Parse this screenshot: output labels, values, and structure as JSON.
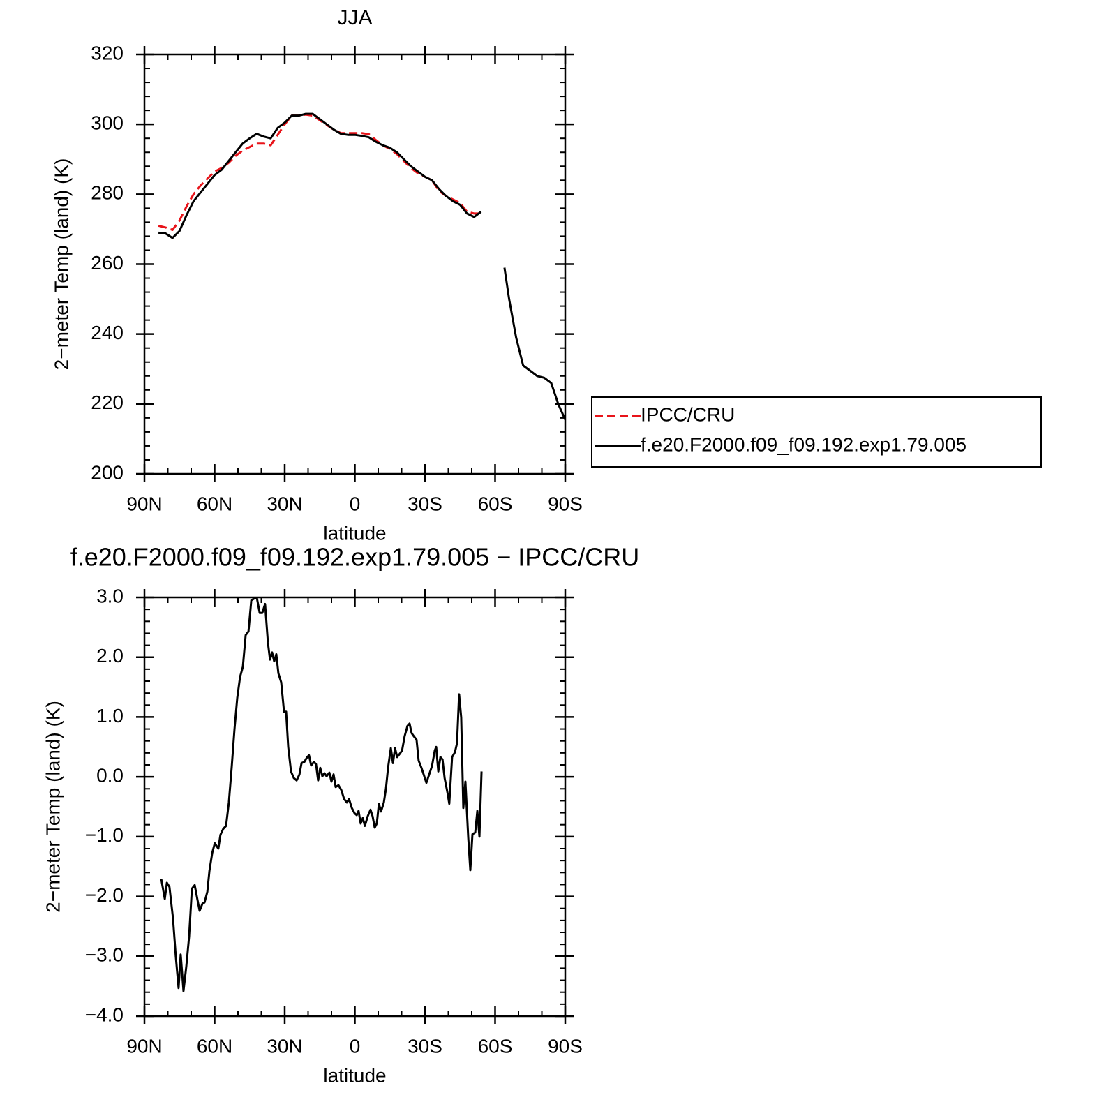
{
  "chart_data": [
    {
      "type": "line",
      "title": "JJA",
      "x_label": "latitude",
      "y_label": "2−meter Temp (land) (K)",
      "xlim": [
        90,
        -90
      ],
      "ylim": [
        200,
        320
      ],
      "xticks": [
        {
          "value": 90,
          "label": "90N"
        },
        {
          "value": 60,
          "label": "60N"
        },
        {
          "value": 30,
          "label": "30N"
        },
        0,
        {
          "value": -30,
          "label": "30S"
        },
        {
          "value": -60,
          "label": "60S"
        },
        {
          "value": -90,
          "label": "90S"
        }
      ],
      "yticks": [
        200,
        220,
        240,
        260,
        280,
        300,
        320
      ],
      "legend": "right",
      "x": [
        84,
        81,
        78,
        75,
        72,
        69,
        66,
        63,
        60,
        57,
        54,
        51,
        48,
        45,
        42,
        39,
        36,
        33,
        30,
        27,
        24,
        21,
        18,
        15,
        12,
        9,
        6,
        3,
        0,
        -3,
        -6,
        -9,
        -12,
        -15,
        -18,
        -21,
        -24,
        -27,
        -30,
        -33,
        -36,
        -39,
        -42,
        -45,
        -48,
        -51,
        -54,
        -57,
        -60,
        -64,
        -66,
        -69,
        -72,
        -75,
        -78,
        -81,
        -84,
        -87,
        -90
      ],
      "series": [
        {
          "name": "IPCC/CRU",
          "color": "#e8141a",
          "line_style": "dashed",
          "values": [
            271,
            270.5,
            269.8,
            272.5,
            276.5,
            280,
            282.5,
            284.5,
            286.5,
            287.5,
            289,
            291,
            292.5,
            293.5,
            294.5,
            294.5,
            294,
            297,
            300,
            302.5,
            302.5,
            302.8,
            302.5,
            301.2,
            299.8,
            298.5,
            297.5,
            297.5,
            297.5,
            297.5,
            297.2,
            295.5,
            294,
            293,
            291.5,
            289.5,
            287.5,
            286,
            285,
            284,
            281,
            279.5,
            278.5,
            277.5,
            275,
            274.5,
            274.5,
            null,
            null,
            null,
            null,
            null,
            null,
            null,
            null,
            null,
            null,
            null,
            null
          ]
        },
        {
          "name": "f.e20.F2000.f09_f09.192.exp1.79.005",
          "color": "#000000",
          "line_style": "solid",
          "values": [
            269,
            268.8,
            267.5,
            269.5,
            274,
            278,
            280.5,
            283,
            285.5,
            287,
            289.5,
            292,
            294.5,
            296,
            297.3,
            296.5,
            296,
            299,
            300.5,
            302.5,
            302.5,
            303,
            303,
            301.5,
            300,
            298.5,
            297.3,
            297,
            297,
            296.7,
            296.3,
            295,
            294,
            293.3,
            292,
            290,
            288,
            286.5,
            285,
            284,
            281.5,
            279.5,
            278,
            277,
            274.5,
            273.5,
            275,
            null,
            null,
            259,
            250,
            239,
            231,
            229.5,
            228,
            227.5,
            226,
            220,
            215.5
          ]
        }
      ]
    },
    {
      "type": "line",
      "title": "f.e20.F2000.f09_f09.192.exp1.79.005 − IPCC/CRU",
      "x_label": "latitude",
      "y_label": "2−meter Temp (land) (K)",
      "xlim": [
        90,
        -90
      ],
      "ylim": [
        -4,
        3
      ],
      "xticks": [
        {
          "value": 90,
          "label": "90N"
        },
        {
          "value": 60,
          "label": "60N"
        },
        {
          "value": 30,
          "label": "30N"
        },
        0,
        {
          "value": -30,
          "label": "30S"
        },
        {
          "value": -60,
          "label": "60S"
        },
        {
          "value": -90,
          "label": "90S"
        }
      ],
      "yticks": [
        {
          "value": -4,
          "label": "−4.0"
        },
        {
          "value": -3,
          "label": "−3.0"
        },
        {
          "value": -2,
          "label": "−2.0"
        },
        {
          "value": -1,
          "label": "−1.0"
        },
        {
          "value": 0,
          "label": "0.0"
        },
        {
          "value": 1,
          "label": "1.0"
        },
        {
          "value": 2,
          "label": "2.0"
        },
        {
          "value": 3,
          "label": "3.0"
        }
      ],
      "x": [
        82.8,
        81.3,
        80.4,
        79.3,
        77.8,
        76.6,
        75.4,
        74.5,
        73.3,
        72.1,
        70.9,
        69.7,
        68.5,
        67.3,
        66.4,
        65.2,
        64.3,
        63.1,
        62.2,
        61.0,
        59.9,
        58.4,
        57.5,
        56.3,
        55.1,
        53.9,
        52.7,
        51.5,
        50.3,
        49.1,
        47.9,
        46.7,
        45.5,
        44.3,
        43.1,
        41.9,
        40.7,
        39.6,
        38.4,
        37.2,
        36.3,
        35.4,
        34.5,
        33.6,
        32.7,
        31.5,
        30.3,
        29.4,
        28.5,
        27.3,
        26.1,
        24.9,
        23.7,
        22.8,
        21.6,
        20.4,
        19.6,
        18.7,
        17.5,
        16.6,
        15.7,
        14.8,
        13.9,
        13.0,
        12.1,
        10.9,
        10.0,
        9.1,
        8.2,
        7.0,
        5.8,
        4.6,
        3.4,
        2.5,
        1.3,
        0.1,
        -0.8,
        -1.6,
        -2.5,
        -3.4,
        -4.3,
        -5.5,
        -6.7,
        -7.6,
        -8.5,
        -9.4,
        -10.3,
        -11.2,
        -12.4,
        -13.3,
        -14.2,
        -15.4,
        -16.3,
        -17.2,
        -18.1,
        -19.3,
        -20.2,
        -21.3,
        -22.5,
        -23.4,
        -24.3,
        -25.2,
        -26.4,
        -27.3,
        -28.5,
        -29.7,
        -30.6,
        -31.8,
        -33.0,
        -34.2,
        -34.8,
        -35.7,
        -36.6,
        -37.5,
        -38.4,
        -39.6,
        -40.4,
        -41.6,
        -42.8,
        -43.7,
        -44.6,
        -45.5,
        -46.4,
        -47.3,
        -48.5,
        -49.4,
        -50.3,
        -51.5,
        -52.4,
        -53.3,
        -54.2
      ],
      "series": [
        {
          "color": "#000000",
          "line_style": "solid",
          "values": [
            -1.71,
            -2.04,
            -1.77,
            -1.84,
            -2.36,
            -3.0,
            -3.53,
            -2.97,
            -3.58,
            -3.17,
            -2.67,
            -1.87,
            -1.81,
            -2.06,
            -2.24,
            -2.12,
            -2.1,
            -1.92,
            -1.57,
            -1.27,
            -1.11,
            -1.2,
            -0.97,
            -0.87,
            -0.82,
            -0.43,
            0.15,
            0.79,
            1.32,
            1.67,
            1.84,
            2.37,
            2.43,
            2.95,
            2.98,
            2.99,
            2.74,
            2.74,
            2.89,
            2.25,
            1.96,
            2.08,
            1.93,
            2.05,
            1.73,
            1.58,
            1.09,
            1.09,
            0.5,
            0.09,
            -0.02,
            -0.06,
            0.04,
            0.23,
            0.25,
            0.33,
            0.36,
            0.19,
            0.25,
            0.21,
            -0.06,
            0.15,
            0.01,
            0.06,
            0.01,
            0.07,
            -0.08,
            0.04,
            -0.17,
            -0.14,
            -0.22,
            -0.37,
            -0.43,
            -0.37,
            -0.52,
            -0.61,
            -0.64,
            -0.57,
            -0.78,
            -0.69,
            -0.82,
            -0.66,
            -0.55,
            -0.66,
            -0.85,
            -0.78,
            -0.45,
            -0.58,
            -0.43,
            -0.2,
            0.15,
            0.48,
            0.23,
            0.48,
            0.33,
            0.39,
            0.44,
            0.68,
            0.85,
            0.89,
            0.73,
            0.68,
            0.62,
            0.27,
            0.15,
            0.01,
            -0.1,
            0.04,
            0.18,
            0.44,
            0.5,
            0.09,
            0.33,
            0.29,
            -0.02,
            -0.26,
            -0.45,
            0.33,
            0.41,
            0.56,
            1.38,
            0.99,
            -0.52,
            -0.08,
            -1.01,
            -1.56,
            -0.96,
            -0.93,
            -0.57,
            -1.0,
            0.09
          ]
        }
      ]
    }
  ]
}
